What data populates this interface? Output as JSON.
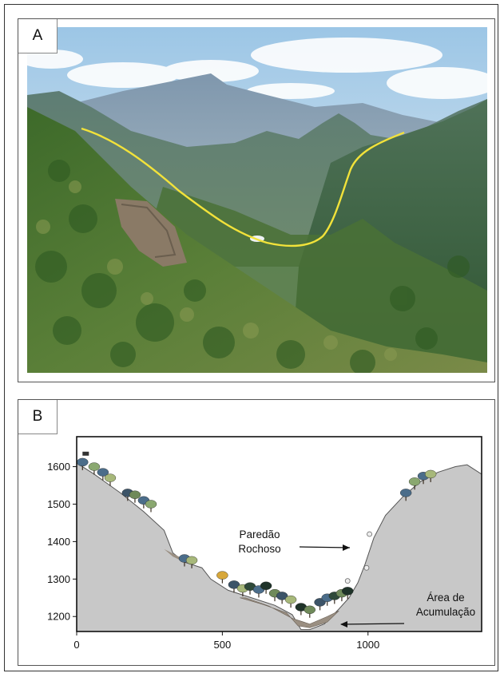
{
  "figure": {
    "panel_a": {
      "label": "A",
      "photo_description_icon": "mountain-valley-photo"
    },
    "panel_b": {
      "label": "B",
      "annotations": {
        "wall_line1": "Paredão",
        "wall_line2": "Rochoso",
        "accum_line1": "Área de",
        "accum_line2": "Acumulação"
      }
    }
  },
  "colors": {
    "terrain_fill": "#c8c8c8",
    "valley_line": "#f2e23a",
    "sky": "#b8d6ec",
    "vegetation": "#3f6e2e"
  },
  "chart_data": {
    "type": "area",
    "title": "",
    "xlabel": "",
    "ylabel": "",
    "xlim": [
      0,
      1390
    ],
    "ylim": [
      1160,
      1680
    ],
    "x_ticks": [
      0,
      500,
      1000
    ],
    "x_tick_labels": [
      "0",
      "500",
      "1000"
    ],
    "y_ticks": [
      1200,
      1300,
      1400,
      1500,
      1600
    ],
    "y_tick_labels": [
      "1200",
      "1300",
      "1400",
      "1500",
      "1600"
    ],
    "series": [
      {
        "x": [
          0,
          60,
          150,
          230,
          300,
          330,
          370,
          430,
          460,
          520,
          600,
          680,
          740,
          770,
          800,
          850,
          900,
          935,
          965,
          990,
          1020,
          1060,
          1120,
          1180,
          1240,
          1300,
          1340,
          1390
        ],
        "y": [
          1610,
          1580,
          1530,
          1480,
          1430,
          1370,
          1345,
          1330,
          1300,
          1270,
          1250,
          1230,
          1205,
          1165,
          1165,
          1180,
          1220,
          1250,
          1290,
          1340,
          1410,
          1470,
          1520,
          1560,
          1585,
          1600,
          1605,
          1580
        ]
      }
    ],
    "grid": false,
    "legend": "none"
  }
}
